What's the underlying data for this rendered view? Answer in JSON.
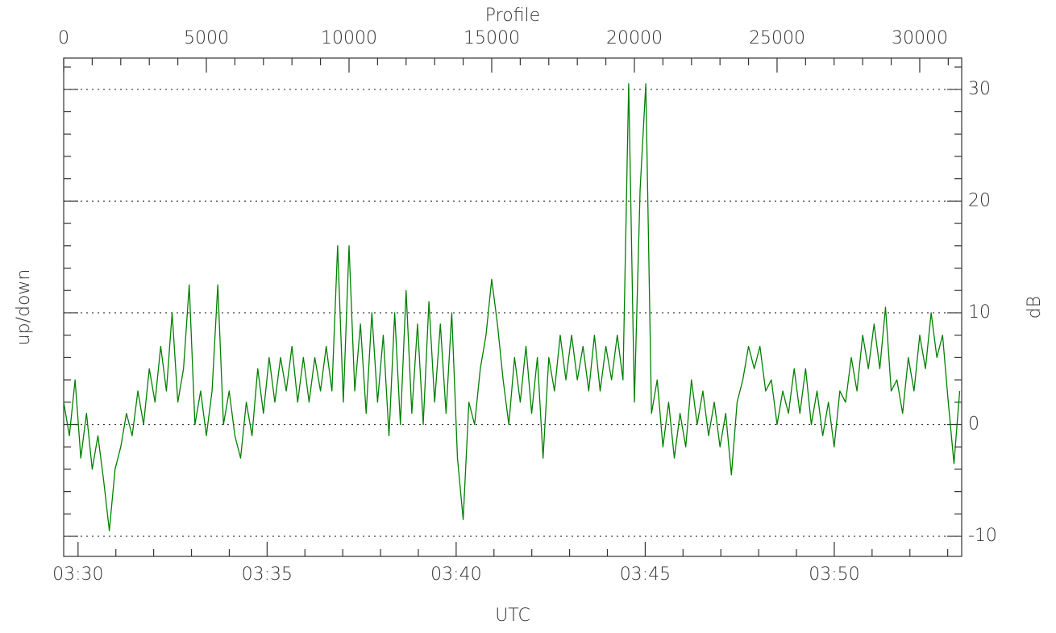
{
  "chart_data": {
    "type": "line",
    "xlabel": "Profile",
    "x2label": "UTC",
    "ylabel": "up/down",
    "y2label": "dB",
    "xlim": [
      0,
      31470
    ],
    "xticks": [
      0,
      5000,
      10000,
      15000,
      20000,
      25000,
      30000
    ],
    "xminor": [
      1000,
      2000,
      3000,
      4000,
      6000,
      7000,
      8000,
      9000,
      11000,
      12000,
      13000,
      14000,
      16000,
      17000,
      18000,
      19000,
      21000,
      22000,
      23000,
      24000,
      26000,
      27000,
      28000,
      29000,
      31000
    ],
    "timelim": [
      29.62,
      53.37
    ],
    "timeticks": [
      {
        "value": 30,
        "label": "03:30"
      },
      {
        "value": 35,
        "label": "03:35"
      },
      {
        "value": 40,
        "label": "03:40"
      },
      {
        "value": 45,
        "label": "03:45"
      },
      {
        "value": 50,
        "label": "03:50"
      }
    ],
    "timeminor": [
      31,
      32,
      33,
      34,
      36,
      37,
      38,
      39,
      41,
      42,
      43,
      44,
      46,
      47,
      48,
      49,
      51,
      52,
      53
    ],
    "ylim": [
      -11.8,
      32.8
    ],
    "yticks": [
      -10,
      0,
      10,
      20,
      30
    ],
    "yminor": [
      -8,
      -6,
      -4,
      -2,
      2,
      4,
      6,
      8,
      12,
      14,
      16,
      18,
      22,
      24,
      26,
      28,
      32
    ],
    "grid": true,
    "x": [
      0,
      200,
      400,
      600,
      800,
      1000,
      1200,
      1400,
      1600,
      1800,
      2000,
      2200,
      2400,
      2600,
      2800,
      3000,
      3200,
      3400,
      3600,
      3800,
      4000,
      4200,
      4400,
      4600,
      4800,
      5000,
      5200,
      5400,
      5600,
      5800,
      6000,
      6200,
      6400,
      6600,
      6800,
      7000,
      7200,
      7400,
      7600,
      7800,
      8000,
      8200,
      8400,
      8600,
      8800,
      9000,
      9200,
      9400,
      9600,
      9800,
      10000,
      10200,
      10400,
      10600,
      10800,
      11000,
      11200,
      11400,
      11600,
      11800,
      12000,
      12200,
      12400,
      12600,
      12800,
      13000,
      13200,
      13400,
      13600,
      13800,
      14000,
      14200,
      14400,
      14600,
      14800,
      15000,
      15200,
      15400,
      15600,
      15800,
      16000,
      16200,
      16400,
      16600,
      16800,
      17000,
      17200,
      17400,
      17600,
      17800,
      18000,
      18200,
      18400,
      18600,
      18800,
      19000,
      19200,
      19400,
      19600,
      19800,
      20000,
      20200,
      20400,
      20600,
      20800,
      21000,
      21200,
      21400,
      21600,
      21800,
      22000,
      22200,
      22400,
      22600,
      22800,
      23000,
      23200,
      23400,
      23600,
      23800,
      24000,
      24200,
      24400,
      24600,
      24800,
      25000,
      25200,
      25400,
      25600,
      25800,
      26000,
      26200,
      26400,
      26600,
      26800,
      27000,
      27200,
      27400,
      27600,
      27800,
      28000,
      28200,
      28400,
      28600,
      28800,
      29000,
      29200,
      29400,
      29600,
      29800,
      30000,
      30200,
      30400,
      30600,
      30800,
      31000,
      31200,
      31400
    ],
    "series": [
      {
        "color": "#008000",
        "values": [
          2,
          -1,
          4,
          -3,
          1,
          -4,
          -1,
          -5,
          -9.5,
          -4,
          -2,
          1,
          -1,
          3,
          0,
          5,
          2,
          7,
          3,
          10,
          2,
          5,
          12.5,
          0,
          3,
          -1,
          3,
          12.5,
          0,
          3,
          -1,
          -3,
          2,
          -1,
          5,
          1,
          6,
          2,
          6,
          3,
          7,
          2,
          6,
          2,
          6,
          3,
          7,
          3,
          16,
          2,
          16,
          3,
          9,
          1,
          10,
          2,
          8,
          -1,
          10,
          0,
          12,
          1,
          9,
          0,
          11,
          2,
          9,
          1,
          10,
          -3,
          -8.5,
          2,
          0,
          5,
          8,
          13,
          9,
          4,
          0,
          6,
          2,
          7,
          1,
          6,
          -3,
          6,
          3,
          8,
          4,
          8,
          4,
          7,
          3,
          8,
          3,
          7,
          4,
          8,
          4,
          30.5,
          2,
          21,
          30.5,
          1,
          4,
          -2,
          2,
          -3,
          1,
          -2,
          4,
          0,
          3,
          -1,
          2,
          -2,
          1,
          -4.5,
          2,
          4,
          7,
          5,
          7,
          3,
          4,
          0,
          3,
          1,
          5,
          1,
          5,
          0,
          3,
          -1,
          2,
          -2,
          3,
          2,
          6,
          3,
          8,
          5,
          9,
          5,
          10.5,
          3,
          4,
          1,
          6,
          3,
          8,
          5,
          10,
          6,
          8,
          2,
          -3.5,
          3
        ]
      }
    ]
  }
}
